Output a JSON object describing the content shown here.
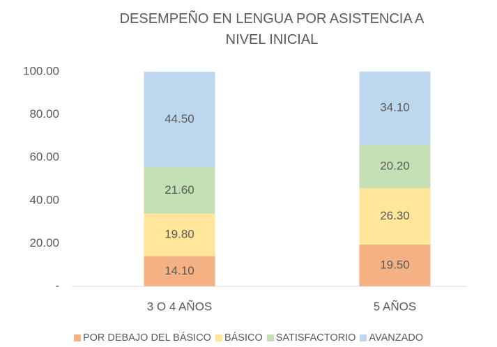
{
  "chart_data": {
    "type": "stacked_bar",
    "title": "DESEMPEÑO EN LENGUA POR ASISTENCIA A NIVEL INICIAL",
    "categories": [
      "3 O 4 AÑOS",
      "5 AÑOS"
    ],
    "series": [
      {
        "name": "POR DEBAJO DEL BÁSICO",
        "color": "#f4b183",
        "values": [
          14.1,
          19.5
        ],
        "value_labels": [
          "14.10",
          "19.50"
        ]
      },
      {
        "name": "BÁSICO",
        "color": "#ffe699",
        "values": [
          19.8,
          26.3
        ],
        "value_labels": [
          "19.80",
          "26.30"
        ]
      },
      {
        "name": "SATISFACTORIO",
        "color": "#c5e0b4",
        "values": [
          21.6,
          20.2
        ],
        "value_labels": [
          "21.60",
          "20.20"
        ]
      },
      {
        "name": "AVANZADO",
        "color": "#bdd7ee",
        "values": [
          44.5,
          34.1
        ],
        "value_labels": [
          "44.50",
          "34.10"
        ]
      }
    ],
    "ylim": [
      0,
      100
    ],
    "yticks": [
      {
        "value": 0,
        "label": "-"
      },
      {
        "value": 20,
        "label": "20.00"
      },
      {
        "value": 40,
        "label": "40.00"
      },
      {
        "value": 60,
        "label": "60.00"
      },
      {
        "value": 80,
        "label": "80.00"
      },
      {
        "value": 100,
        "label": "100.00"
      }
    ],
    "legend": "bottom",
    "grid": false
  }
}
